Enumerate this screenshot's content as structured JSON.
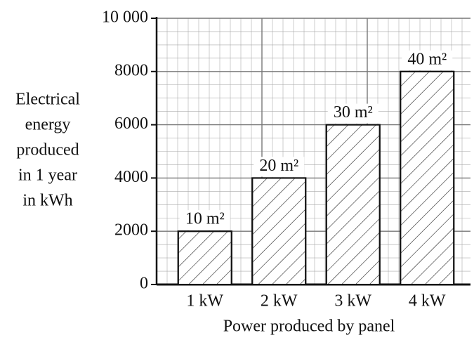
{
  "chart_data": {
    "type": "bar",
    "categories": [
      "1 kW",
      "2 kW",
      "3 kW",
      "4 kW"
    ],
    "values": [
      2000,
      4000,
      6000,
      8000
    ],
    "annotations": [
      "10 m²",
      "20 m²",
      "30 m²",
      "40 m²"
    ],
    "color": "#ffffff",
    "hatch": true,
    "ylim": [
      0,
      10000
    ],
    "yticks": [
      0,
      2000,
      4000,
      6000,
      8000,
      {
        "value": 10000,
        "label": "10 000"
      }
    ],
    "grid": true,
    "ylabel_lines": [
      "Electrical",
      "energy",
      "produced",
      "in 1 year",
      "in kWh"
    ],
    "xlabel": "Power produced by panel"
  }
}
